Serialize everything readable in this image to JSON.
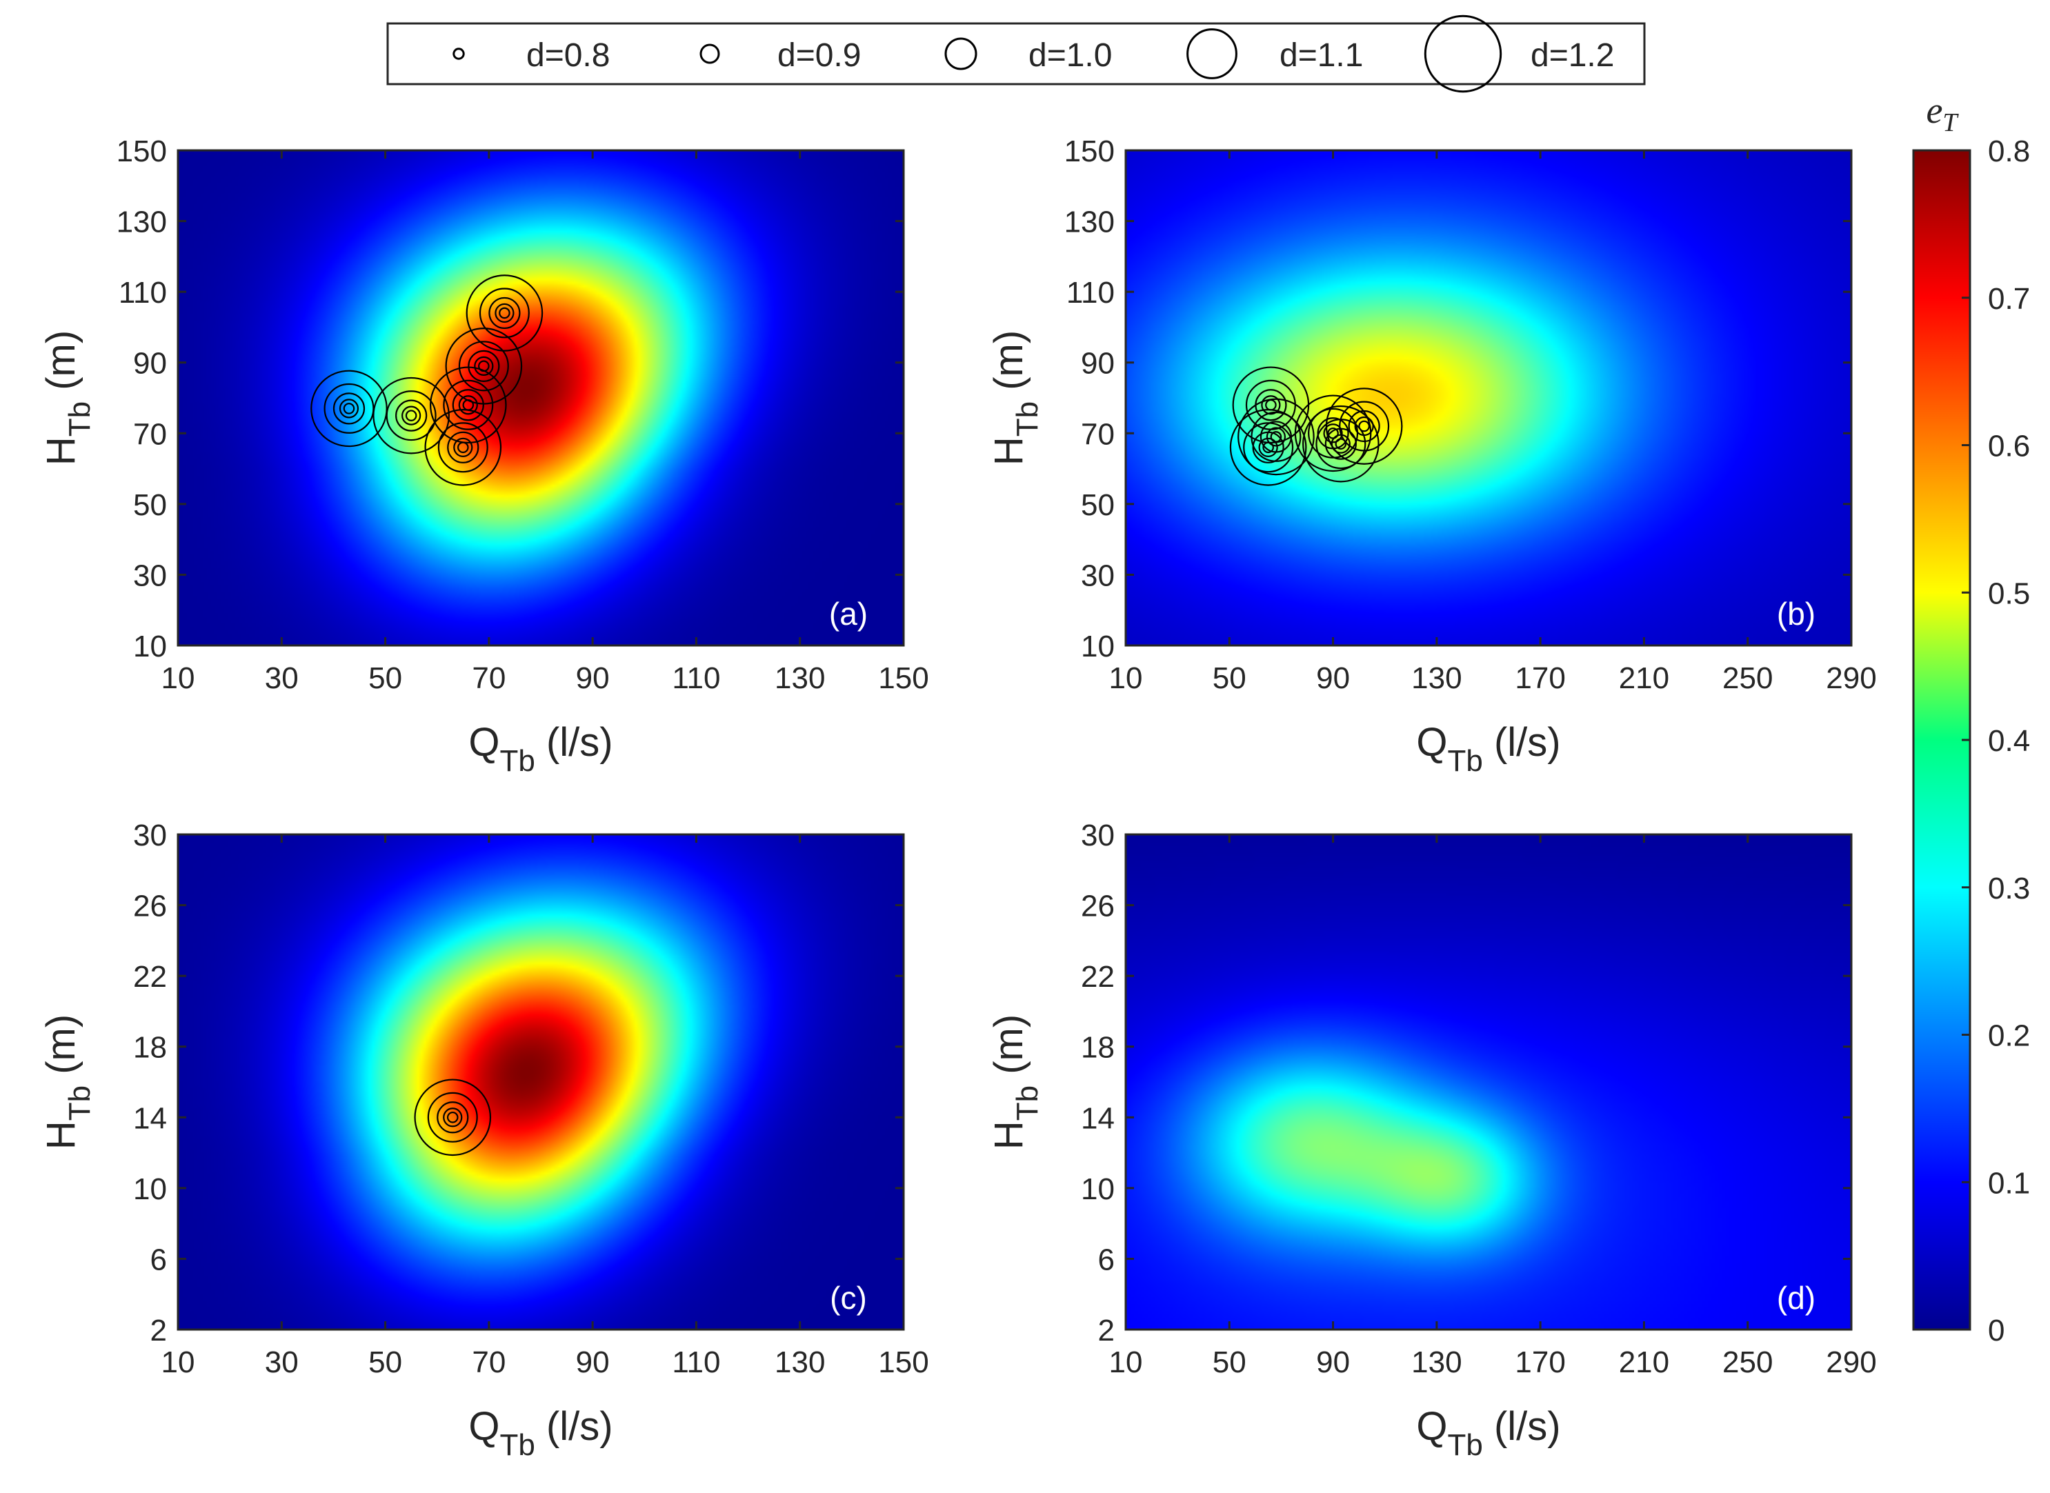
{
  "legend": {
    "placement": "top-center",
    "entries": [
      {
        "label": "d=0.8",
        "marker_scale": 0.8
      },
      {
        "label": "d=0.9",
        "marker_scale": 0.9
      },
      {
        "label": "d=1.0",
        "marker_scale": 1.0
      },
      {
        "label": "d=1.1",
        "marker_scale": 1.1
      },
      {
        "label": "d=1.2",
        "marker_scale": 1.2
      }
    ]
  },
  "colorbar": {
    "title": "e",
    "title_sub": "T",
    "min": 0,
    "max": 0.8,
    "ticks": [
      "0",
      "0.1",
      "0.2",
      "0.3",
      "0.4",
      "0.5",
      "0.6",
      "0.7",
      "0.8"
    ],
    "colormap": "jet"
  },
  "chart_data": [
    {
      "type": "heatmap",
      "panel_label": "(a)",
      "xlabel": "Q",
      "xlabel_sub": "Tb",
      "xlabel_unit": " (l/s)",
      "ylabel": "H",
      "ylabel_sub": "Tb",
      "ylabel_unit": " (m)",
      "xlim": [
        10,
        150
      ],
      "ylim": [
        10,
        150
      ],
      "xticks": [
        10,
        30,
        50,
        70,
        90,
        110,
        130,
        150
      ],
      "yticks": [
        10,
        30,
        50,
        70,
        90,
        110,
        130,
        150
      ],
      "field": {
        "peak_x": 68,
        "peak_y": 83,
        "peak_value": 0.78,
        "description_value_range": [
          0.02,
          0.78
        ]
      },
      "markers": [
        {
          "x": 43,
          "y": 77
        },
        {
          "x": 55,
          "y": 75
        },
        {
          "x": 66,
          "y": 78
        },
        {
          "x": 69,
          "y": 89
        },
        {
          "x": 65,
          "y": 66
        },
        {
          "x": 73,
          "y": 104
        }
      ]
    },
    {
      "type": "heatmap",
      "panel_label": "(b)",
      "xlabel": "Q",
      "xlabel_sub": "Tb",
      "xlabel_unit": " (l/s)",
      "ylabel": "H",
      "ylabel_sub": "Tb",
      "ylabel_unit": " (m)",
      "xlim": [
        10,
        290
      ],
      "ylim": [
        10,
        150
      ],
      "xticks": [
        10,
        50,
        90,
        130,
        170,
        210,
        250,
        290
      ],
      "yticks": [
        10,
        30,
        50,
        70,
        90,
        110,
        130,
        150
      ],
      "field": {
        "peak_x": 120,
        "peak_y": 78,
        "peak_value": 0.5,
        "description_value_range": [
          0.05,
          0.5
        ]
      },
      "markers": [
        {
          "x": 66,
          "y": 78
        },
        {
          "x": 68,
          "y": 69
        },
        {
          "x": 65,
          "y": 66
        },
        {
          "x": 90,
          "y": 70
        },
        {
          "x": 93,
          "y": 67
        },
        {
          "x": 102,
          "y": 72
        }
      ]
    },
    {
      "type": "heatmap",
      "panel_label": "(c)",
      "xlabel": "Q",
      "xlabel_sub": "Tb",
      "xlabel_unit": " (l/s)",
      "ylabel": "H",
      "ylabel_sub": "Tb",
      "ylabel_unit": " (m)",
      "xlim": [
        10,
        150
      ],
      "ylim": [
        2,
        30
      ],
      "xticks": [
        10,
        30,
        50,
        70,
        90,
        110,
        130,
        150
      ],
      "yticks": [
        2,
        6,
        10,
        14,
        18,
        22,
        26,
        30
      ],
      "field": {
        "peak_x": 67,
        "peak_y": 16.5,
        "peak_value": 0.76,
        "description_value_range": [
          0.02,
          0.76
        ]
      },
      "markers": [
        {
          "x": 63,
          "y": 14
        }
      ]
    },
    {
      "type": "heatmap",
      "panel_label": "(d)",
      "xlabel": "Q",
      "xlabel_sub": "Tb",
      "xlabel_unit": " (l/s)",
      "ylabel": "H",
      "ylabel_sub": "Tb",
      "ylabel_unit": " (m)",
      "xlim": [
        10,
        290
      ],
      "ylim": [
        2,
        30
      ],
      "xticks": [
        10,
        50,
        90,
        130,
        170,
        210,
        250,
        290
      ],
      "yticks": [
        2,
        6,
        10,
        14,
        18,
        22,
        26,
        30
      ],
      "field": {
        "peak_x": 100,
        "peak_y": 10.5,
        "peak_value": 0.4,
        "description_value_range": [
          0.02,
          0.4
        ]
      },
      "markers": []
    }
  ]
}
